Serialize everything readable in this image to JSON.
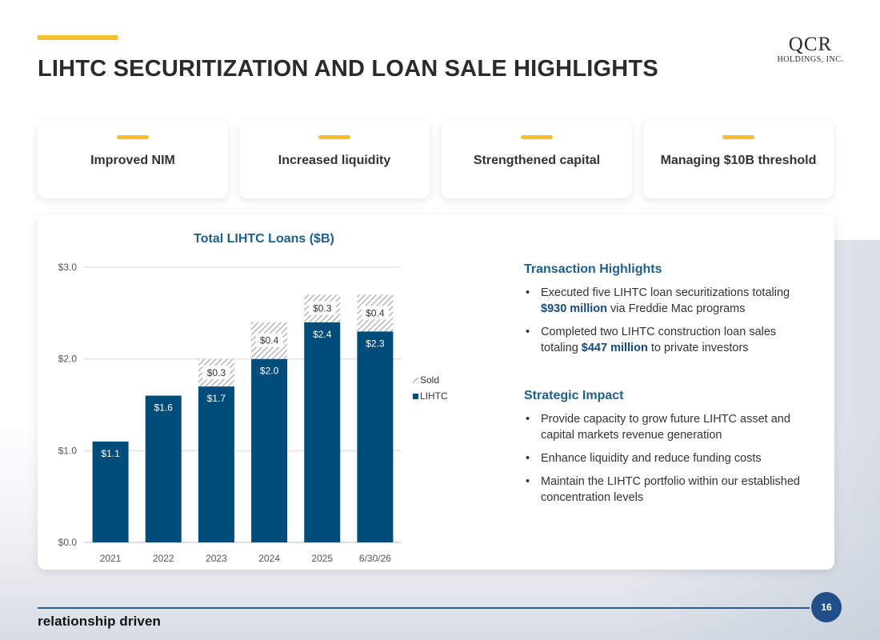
{
  "header": {
    "title": "LIHTC SECURITIZATION AND LOAN SALE HIGHLIGHTS",
    "logo_main": "QCR",
    "logo_sub": "Holdings, Inc."
  },
  "cards": [
    {
      "label": "Improved NIM"
    },
    {
      "label": "Increased liquidity"
    },
    {
      "label": "Strengthened capital"
    },
    {
      "label": "Managing $10B threshold"
    }
  ],
  "chart_data": {
    "type": "bar",
    "stacked": true,
    "title": "Total LIHTC Loans ($B)",
    "categories": [
      "2021",
      "2022",
      "2023",
      "2024",
      "2025",
      "6/30/26"
    ],
    "series": [
      {
        "name": "LIHTC",
        "values": [
          1.1,
          1.6,
          1.7,
          2.0,
          2.4,
          2.3
        ],
        "labels": [
          "$1.1",
          "$1.6",
          "$1.7",
          "$2.0",
          "$2.4",
          "$2.3"
        ],
        "color": "#004c7b"
      },
      {
        "name": "Sold",
        "values": [
          0,
          0,
          0.3,
          0.4,
          0.3,
          0.4
        ],
        "labels": [
          "",
          "",
          "$0.3",
          "$0.4",
          "$0.3",
          "$0.4"
        ],
        "color": "#9a9a9a",
        "pattern": "hatched"
      }
    ],
    "y_ticks": [
      "$0.0",
      "$1.0",
      "$2.0",
      "$3.0"
    ],
    "ylim": [
      0,
      3.0
    ],
    "grid": true,
    "legend": {
      "position": "right",
      "entries": [
        "Sold",
        "LIHTC"
      ]
    }
  },
  "highlights": {
    "title": "Transaction Highlights",
    "bullets": [
      {
        "pre": "Executed five LIHTC loan securitizations totaling ",
        "hl": "$930 million",
        "post": " via Freddie Mac programs"
      },
      {
        "pre": "Completed two LIHTC construction loan sales totaling ",
        "hl": "$447 million",
        "post": " to private investors"
      }
    ]
  },
  "impact": {
    "title": "Strategic Impact",
    "bullets": [
      "Provide capacity to grow future LIHTC asset and capital markets revenue generation",
      "Enhance liquidity and reduce funding costs",
      "Maintain the LIHTC portfolio within our established concentration levels"
    ]
  },
  "footer": {
    "tagline": "relationship driven",
    "page_number": "16"
  }
}
